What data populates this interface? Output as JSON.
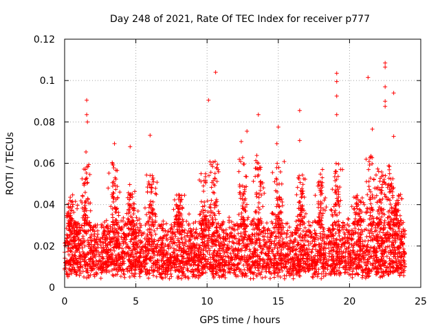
{
  "chart_data": {
    "type": "scatter",
    "title": "Day 248 of 2021, Rate Of TEC Index for receiver p777",
    "xlabel": "GPS time / hours",
    "ylabel": "ROTI / TECUs",
    "xlim": [
      0,
      25
    ],
    "ylim": [
      0,
      0.12
    ],
    "xticks": [
      0,
      5,
      10,
      15,
      20,
      25
    ],
    "xtick_labels": [
      "0",
      "5",
      "10",
      "15",
      "20",
      "25"
    ],
    "yticks": [
      0,
      0.02,
      0.04,
      0.06,
      0.08,
      0.1,
      0.12
    ],
    "ytick_labels": [
      "0",
      "0.02",
      "0.04",
      "0.06",
      "0.08",
      "0.1",
      "0.12"
    ],
    "grid": true,
    "marker": "+",
    "marker_color": "#ff0000",
    "x_range_of_samples_hours": [
      0,
      23.9
    ],
    "typical_band": [
      0.008,
      0.03
    ],
    "notable_points": [
      {
        "x": 1.55,
        "y": 0.0905
      },
      {
        "x": 1.55,
        "y": 0.0835
      },
      {
        "x": 1.6,
        "y": 0.08
      },
      {
        "x": 1.5,
        "y": 0.0655
      },
      {
        "x": 3.5,
        "y": 0.0695
      },
      {
        "x": 4.6,
        "y": 0.068
      },
      {
        "x": 6.0,
        "y": 0.0735
      },
      {
        "x": 10.1,
        "y": 0.0905
      },
      {
        "x": 10.6,
        "y": 0.104
      },
      {
        "x": 12.8,
        "y": 0.0755
      },
      {
        "x": 13.6,
        "y": 0.0835
      },
      {
        "x": 15.0,
        "y": 0.0775
      },
      {
        "x": 16.5,
        "y": 0.0855
      },
      {
        "x": 16.5,
        "y": 0.071
      },
      {
        "x": 19.1,
        "y": 0.1035
      },
      {
        "x": 19.1,
        "y": 0.0995
      },
      {
        "x": 19.1,
        "y": 0.0925
      },
      {
        "x": 19.1,
        "y": 0.0835
      },
      {
        "x": 21.3,
        "y": 0.1015
      },
      {
        "x": 21.6,
        "y": 0.0765
      },
      {
        "x": 22.5,
        "y": 0.1085
      },
      {
        "x": 22.5,
        "y": 0.1065
      },
      {
        "x": 22.5,
        "y": 0.097
      },
      {
        "x": 22.5,
        "y": 0.09
      },
      {
        "x": 22.5,
        "y": 0.0875
      },
      {
        "x": 23.1,
        "y": 0.094
      },
      {
        "x": 23.1,
        "y": 0.073
      },
      {
        "x": 12.4,
        "y": 0.0705
      },
      {
        "x": 14.9,
        "y": 0.0695
      },
      {
        "x": 18.1,
        "y": 0.057
      }
    ],
    "activity_clusters": [
      {
        "center_hours": 0.5,
        "peak": 0.045
      },
      {
        "center_hours": 1.5,
        "peak": 0.06
      },
      {
        "center_hours": 3.5,
        "peak": 0.062
      },
      {
        "center_hours": 4.6,
        "peak": 0.05
      },
      {
        "center_hours": 6.1,
        "peak": 0.055
      },
      {
        "center_hours": 8.0,
        "peak": 0.045
      },
      {
        "center_hours": 9.8,
        "peak": 0.058
      },
      {
        "center_hours": 10.5,
        "peak": 0.062
      },
      {
        "center_hours": 12.5,
        "peak": 0.065
      },
      {
        "center_hours": 13.6,
        "peak": 0.065
      },
      {
        "center_hours": 15.0,
        "peak": 0.062
      },
      {
        "center_hours": 16.6,
        "peak": 0.055
      },
      {
        "center_hours": 18.0,
        "peak": 0.055
      },
      {
        "center_hours": 19.1,
        "peak": 0.06
      },
      {
        "center_hours": 20.6,
        "peak": 0.045
      },
      {
        "center_hours": 21.5,
        "peak": 0.065
      },
      {
        "center_hours": 22.2,
        "peak": 0.06
      },
      {
        "center_hours": 22.9,
        "peak": 0.06
      },
      {
        "center_hours": 23.3,
        "peak": 0.045
      }
    ]
  }
}
